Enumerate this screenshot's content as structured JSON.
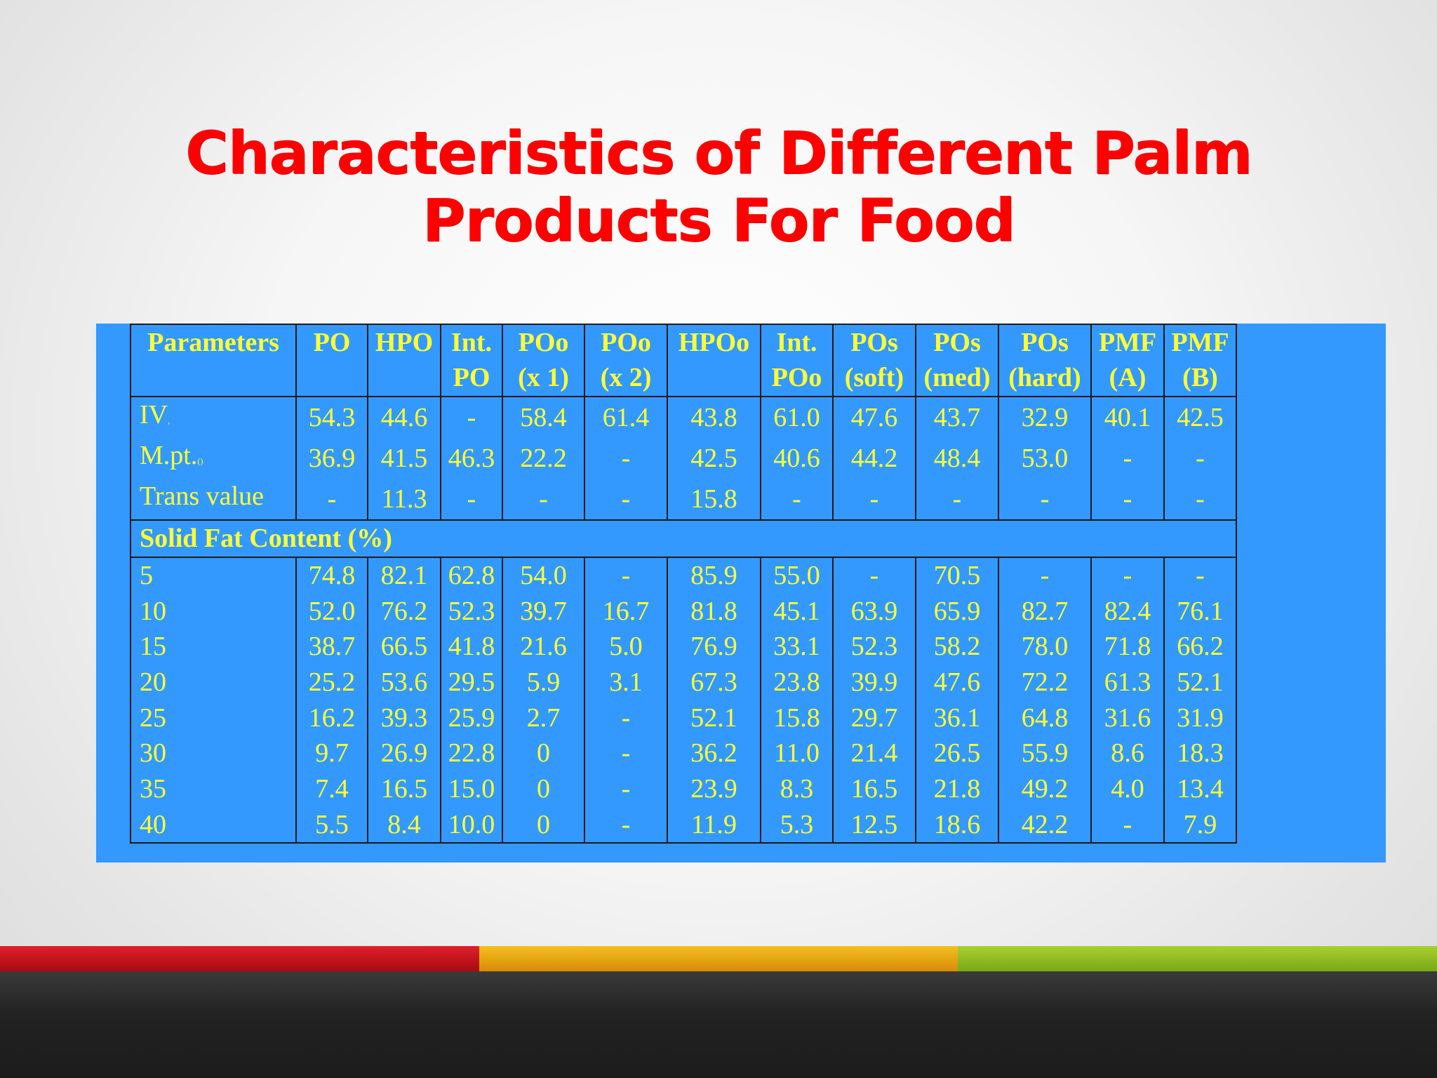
{
  "title_line1": "Characteristics of Different Palm",
  "title_line2": "Products For Food",
  "headers": [
    [
      "Parameters",
      ""
    ],
    [
      "PO",
      ""
    ],
    [
      "HPO",
      ""
    ],
    [
      "Int.",
      "PO"
    ],
    [
      "POo",
      "(x 1)"
    ],
    [
      "POo",
      "(x 2)"
    ],
    [
      "HPOo",
      ""
    ],
    [
      "Int.",
      "POo"
    ],
    [
      "POs",
      "(soft)"
    ],
    [
      "POs",
      "(med)"
    ],
    [
      "POs",
      "(hard)"
    ],
    [
      "PMF",
      "(A)"
    ],
    [
      "PMF",
      "(B)"
    ]
  ],
  "params_rows": [
    {
      "label": "IV",
      "mark": ",",
      "values": [
        "54.3",
        "44.6",
        "-",
        "58.4",
        "61.4",
        "43.8",
        "61.0",
        "47.6",
        "43.7",
        "32.9",
        "40.1",
        "42.5"
      ]
    },
    {
      "label": "M.pt.",
      "mark": "()",
      "values": [
        "36.9",
        "41.5",
        "46.3",
        "22.2",
        "-",
        "42.5",
        "40.6",
        "44.2",
        "48.4",
        "53.0",
        "-",
        "-"
      ]
    },
    {
      "label": "Trans value",
      "mark": "",
      "values": [
        "-",
        "11.3",
        "-",
        "-",
        "-",
        "15.8",
        "-",
        "-",
        "-",
        "-",
        "-",
        "-"
      ]
    }
  ],
  "section_label": "Solid Fat Content",
  "section_unit": "(%)",
  "sfc_rows": [
    {
      "label": "5",
      "values": [
        "74.8",
        "82.1",
        "62.8",
        "54.0",
        "-",
        "85.9",
        "55.0",
        "-",
        "70.5",
        "-",
        "-",
        "-"
      ]
    },
    {
      "label": "10",
      "values": [
        "52.0",
        "76.2",
        "52.3",
        "39.7",
        "16.7",
        "81.8",
        "45.1",
        "63.9",
        "65.9",
        "82.7",
        "82.4",
        "76.1"
      ]
    },
    {
      "label": "15",
      "values": [
        "38.7",
        "66.5",
        "41.8",
        "21.6",
        "5.0",
        "76.9",
        "33.1",
        "52.3",
        "58.2",
        "78.0",
        "71.8",
        "66.2"
      ]
    },
    {
      "label": "20",
      "values": [
        "25.2",
        "53.6",
        "29.5",
        "5.9",
        "3.1",
        "67.3",
        "23.8",
        "39.9",
        "47.6",
        "72.2",
        "61.3",
        "52.1"
      ]
    },
    {
      "label": "25",
      "values": [
        "16.2",
        "39.3",
        "25.9",
        "2.7",
        "-",
        "52.1",
        "15.8",
        "29.7",
        "36.1",
        "64.8",
        "31.6",
        "31.9"
      ]
    },
    {
      "label": "30",
      "values": [
        "9.7",
        "26.9",
        "22.8",
        "0",
        "-",
        "36.2",
        "11.0",
        "21.4",
        "26.5",
        "55.9",
        "8.6",
        "18.3"
      ]
    },
    {
      "label": "35",
      "values": [
        "7.4",
        "16.5",
        "15.0",
        "0",
        "-",
        "23.9",
        "8.3",
        "16.5",
        "21.8",
        "49.2",
        "4.0",
        "13.4"
      ]
    },
    {
      "label": "40",
      "values": [
        "5.5",
        "8.4",
        "10.0",
        "0",
        "-",
        "11.9",
        "5.3",
        "12.5",
        "18.6",
        "42.2",
        "-",
        "7.9"
      ]
    }
  ],
  "colors": {
    "title": "#ff0000",
    "table_bg": "#3399ff",
    "table_text": "#ffff33",
    "stripe_red": "#c8101a",
    "stripe_orange": "#e8a010",
    "stripe_green": "#8cc020",
    "footer": "#222222"
  }
}
